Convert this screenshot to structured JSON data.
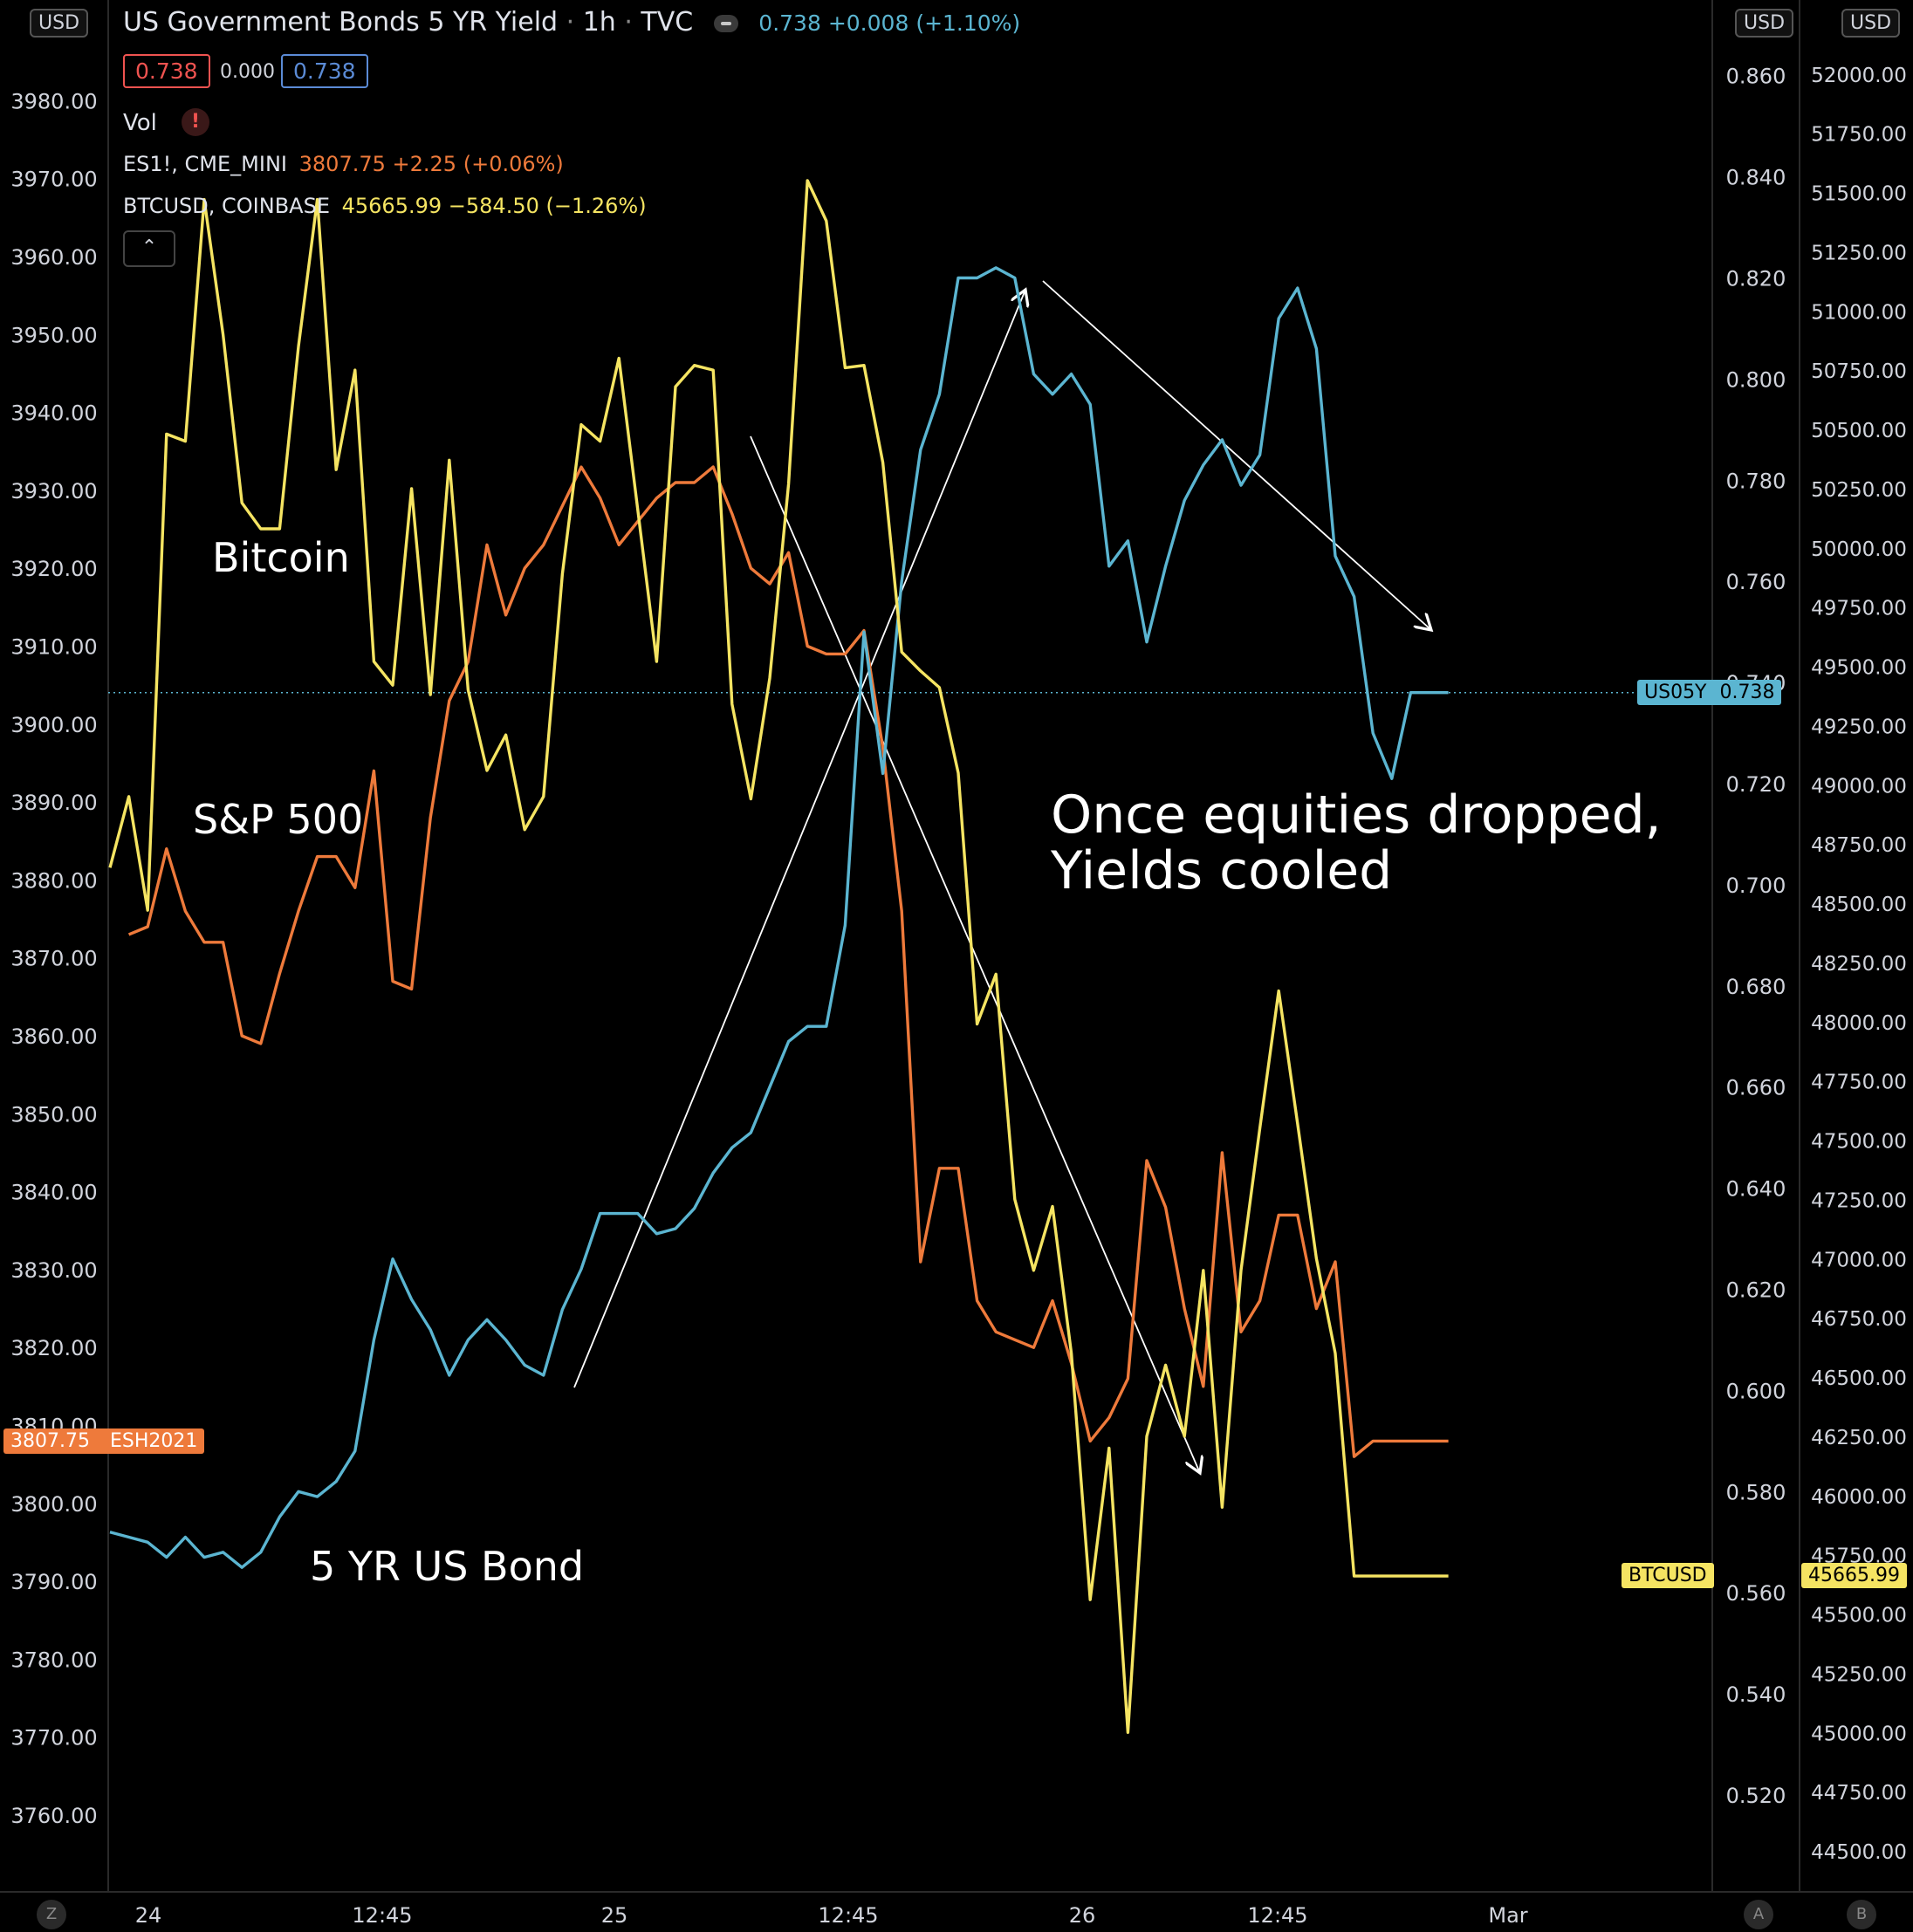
{
  "header": {
    "title": "US Government Bonds 5 YR Yield",
    "interval": "1h",
    "source": "TVC",
    "quote_last": "0.738",
    "quote_change": "+0.008",
    "quote_change_pct": "(+1.10%)",
    "bid": "0.738",
    "spread": "0.000",
    "ask": "0.738",
    "vol_label": "Vol",
    "vol_warning": "!",
    "es_name": "ES1!, CME_MINI",
    "es_price": "3807.75",
    "es_change": "+2.25",
    "es_change_pct": "(+0.06%)",
    "btc_name": "BTCUSD, COINBASE",
    "btc_price": "45665.99",
    "btc_change": "−584.50",
    "btc_change_pct": "(−1.26%)",
    "collapse_icon": "chevron-up-icon",
    "currency": "USD"
  },
  "bottom_bar": {
    "left_button": "Z",
    "auto_button": "A",
    "b_button": "B"
  },
  "colors": {
    "yield": "#5bb5d1",
    "sp500": "#ee7a3b",
    "bitcoin": "#f5e462",
    "background": "#000000",
    "bid_red": "#ef5350",
    "ask_blue": "#5b8bd6"
  },
  "price_tags": {
    "sp500_price": "3807.75",
    "sp500_symbol": "ESH2021",
    "yield_symbol": "US05Y",
    "yield_price": "0.738",
    "btc_symbol": "BTCUSD",
    "btc_price": "45665.99"
  },
  "annotations": {
    "bitcoin": "Bitcoin",
    "sp500": "S&P 500",
    "bond": "5 YR US Bond",
    "note_line1": "Once equities dropped,",
    "note_line2": "Yields cooled"
  },
  "chart_data": {
    "type": "line",
    "title": "US Government Bonds 5 YR Yield · 1h · TVC",
    "x_ticks": [
      "24",
      "12:45",
      "25",
      "12:45",
      "26",
      "12:45",
      "Mar"
    ],
    "axes": {
      "left": {
        "currency": "USD",
        "range": [
          3752,
          3990
        ],
        "ticks": [
          3760,
          3770,
          3780,
          3790,
          3800,
          3810,
          3820,
          3830,
          3840,
          3850,
          3860,
          3870,
          3880,
          3890,
          3900,
          3910,
          3920,
          3930,
          3940,
          3950,
          3960,
          3970,
          3980
        ]
      },
      "right_yield": {
        "currency": "USD",
        "range": [
          0.505,
          0.872
        ],
        "ticks": [
          0.52,
          0.54,
          0.56,
          0.58,
          0.6,
          0.62,
          0.64,
          0.66,
          0.68,
          0.7,
          0.72,
          0.74,
          0.76,
          0.78,
          0.8,
          0.82,
          0.84,
          0.86
        ]
      },
      "right_btc": {
        "currency": "USD",
        "range": [
          44400,
          52300
        ],
        "ticks": [
          44500,
          44750,
          45000,
          45250,
          45500,
          45750,
          46000,
          46250,
          46500,
          46750,
          47000,
          47250,
          47500,
          47750,
          48000,
          48250,
          48500,
          48750,
          49000,
          49250,
          49500,
          49750,
          50000,
          50250,
          50500,
          50750,
          51000,
          51250,
          51500,
          51750,
          52000
        ]
      }
    },
    "current_value_line": 0.738,
    "series": [
      {
        "name": "US05Y",
        "axis": "right_yield",
        "x": [
          0,
          1,
          2,
          3,
          4,
          5,
          6,
          7,
          8,
          9,
          10,
          11,
          12,
          13,
          14,
          15,
          16,
          17,
          18,
          19,
          20,
          21,
          22,
          23,
          24,
          25,
          26,
          27,
          28,
          29,
          30,
          31,
          32,
          33,
          34,
          35,
          36,
          37,
          38,
          39,
          40,
          41,
          42,
          43,
          44,
          45,
          46,
          47,
          48,
          49,
          50,
          51,
          52,
          53,
          54,
          55,
          56,
          57,
          58,
          59,
          60,
          61,
          62,
          63,
          64,
          65,
          66,
          67,
          68,
          69,
          70,
          71
        ],
        "values": [
          0.572,
          0.571,
          0.57,
          0.567,
          0.571,
          0.567,
          0.568,
          0.565,
          0.568,
          0.575,
          0.58,
          0.579,
          0.582,
          0.588,
          0.61,
          0.626,
          0.618,
          0.612,
          0.603,
          0.61,
          0.614,
          0.61,
          0.605,
          0.603,
          0.616,
          0.624,
          0.635,
          0.635,
          0.635,
          0.631,
          0.632,
          0.636,
          0.643,
          0.648,
          0.651,
          0.66,
          0.669,
          0.672,
          0.672,
          0.692,
          0.75,
          0.722,
          0.76,
          0.786,
          0.797,
          0.82,
          0.82,
          0.822,
          0.82,
          0.801,
          0.797,
          0.801,
          0.795,
          0.763,
          0.768,
          0.748,
          0.763,
          0.776,
          0.783,
          0.788,
          0.779,
          0.785,
          0.812,
          0.818,
          0.806,
          0.765,
          0.757,
          0.73,
          0.721,
          0.738,
          0.738,
          0.738
        ]
      },
      {
        "name": "ES1!",
        "axis": "left",
        "x": [
          1,
          2,
          3,
          4,
          5,
          6,
          7,
          8,
          9,
          10,
          11,
          12,
          13,
          14,
          15,
          16,
          17,
          18,
          19,
          20,
          21,
          22,
          23,
          24,
          25,
          26,
          27,
          28,
          29,
          30,
          31,
          32,
          33,
          34,
          35,
          36,
          37,
          38,
          39,
          40,
          41,
          42,
          43,
          44,
          45,
          46,
          47,
          48,
          49,
          50,
          51,
          52,
          53,
          54,
          55,
          56,
          57,
          58,
          59,
          60,
          61,
          62,
          63,
          64,
          65,
          66,
          67,
          68,
          69,
          70,
          71
        ],
        "values": [
          3873,
          3874,
          3884,
          3876,
          3872,
          3872,
          3860,
          3859,
          3868,
          3876,
          3883,
          3883,
          3879,
          3894,
          3867,
          3866,
          3888,
          3903,
          3908,
          3923,
          3914,
          3920,
          3923,
          3928,
          3933,
          3929,
          3923,
          3926,
          3929,
          3931,
          3931,
          3933,
          3927,
          3920,
          3918,
          3922,
          3910,
          3909,
          3909,
          3912,
          3897,
          3876,
          3831,
          3843,
          3843,
          3826,
          3822,
          3821,
          3820,
          3826,
          3818,
          3808,
          3811,
          3816,
          3844,
          3838,
          3825,
          3815,
          3845,
          3822,
          3826,
          3837,
          3837,
          3825,
          3831,
          3806,
          3808,
          3808,
          3808,
          3808,
          3808
        ]
      },
      {
        "name": "BTCUSD",
        "axis": "right_btc",
        "x": [
          0,
          1,
          2,
          3,
          4,
          5,
          6,
          7,
          8,
          9,
          10,
          11,
          12,
          13,
          14,
          15,
          16,
          17,
          18,
          19,
          20,
          21,
          22,
          23,
          24,
          25,
          26,
          27,
          28,
          29,
          30,
          31,
          32,
          33,
          34,
          35,
          36,
          37,
          38,
          39,
          40,
          41,
          42,
          43,
          44,
          45,
          46,
          47,
          48,
          49,
          50,
          51,
          52,
          53,
          54,
          55,
          56,
          57,
          58,
          59,
          60,
          61,
          62,
          63,
          64,
          65,
          66,
          67,
          68,
          69,
          70,
          71
        ],
        "values": [
          48650,
          48950,
          48470,
          50480,
          50450,
          51470,
          50900,
          50190,
          50080,
          50080,
          50850,
          51470,
          50330,
          50750,
          49520,
          49420,
          50250,
          49380,
          50370,
          49400,
          49060,
          49210,
          48810,
          48950,
          49890,
          50520,
          50450,
          50800,
          50160,
          49520,
          50680,
          50770,
          50750,
          49340,
          48940,
          49450,
          50270,
          51550,
          51380,
          50760,
          50770,
          50360,
          49560,
          49480,
          49410,
          49050,
          47990,
          48200,
          47250,
          46950,
          47220,
          46600,
          45560,
          46200,
          45000,
          46250,
          46550,
          46250,
          46950,
          45950,
          46950,
          47550,
          48130,
          47570,
          47000,
          46600,
          45660,
          45660,
          45660,
          45660,
          45660,
          45660
        ]
      }
    ]
  }
}
